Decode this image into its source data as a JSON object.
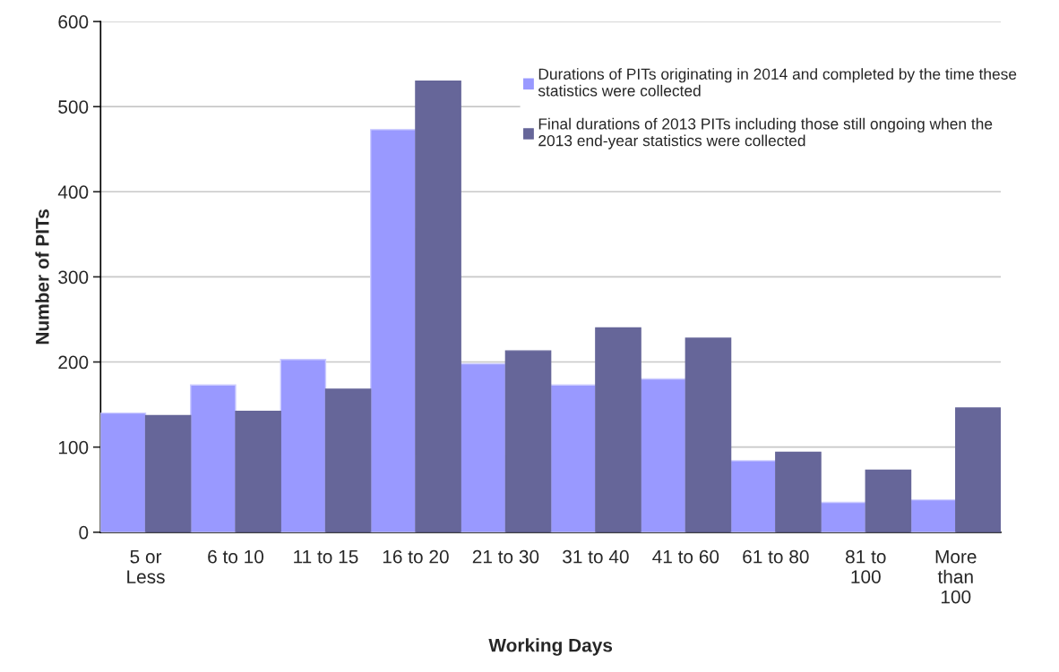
{
  "chart_data": {
    "type": "bar",
    "xlabel": "Working Days",
    "ylabel": "Number of PITs",
    "categories": [
      "5 or\nLess",
      "6 to 10",
      "11 to 15",
      "16 to 20",
      "21 to 30",
      "31 to 40",
      "41 to 60",
      "61 to 80",
      "81 to\n100",
      "More\nthan\n100"
    ],
    "series": [
      {
        "name": "Durations of PITs originating in 2014 and completed by the time these\nstatistics were collected",
        "color": "#9999ff",
        "values": [
          140,
          173,
          203,
          473,
          198,
          173,
          180,
          84,
          35,
          38
        ]
      },
      {
        "name": "Final durations of 2013 PITs including those still ongoing when the\n2013 end-year statistics were collected",
        "color": "#666699",
        "values": [
          137,
          142,
          168,
          530,
          213,
          240,
          228,
          94,
          73,
          146
        ]
      }
    ],
    "ylim": [
      0,
      600
    ],
    "yticks": [
      0,
      100,
      200,
      300,
      400,
      500,
      600
    ],
    "grid": "y",
    "legend": "top right"
  }
}
